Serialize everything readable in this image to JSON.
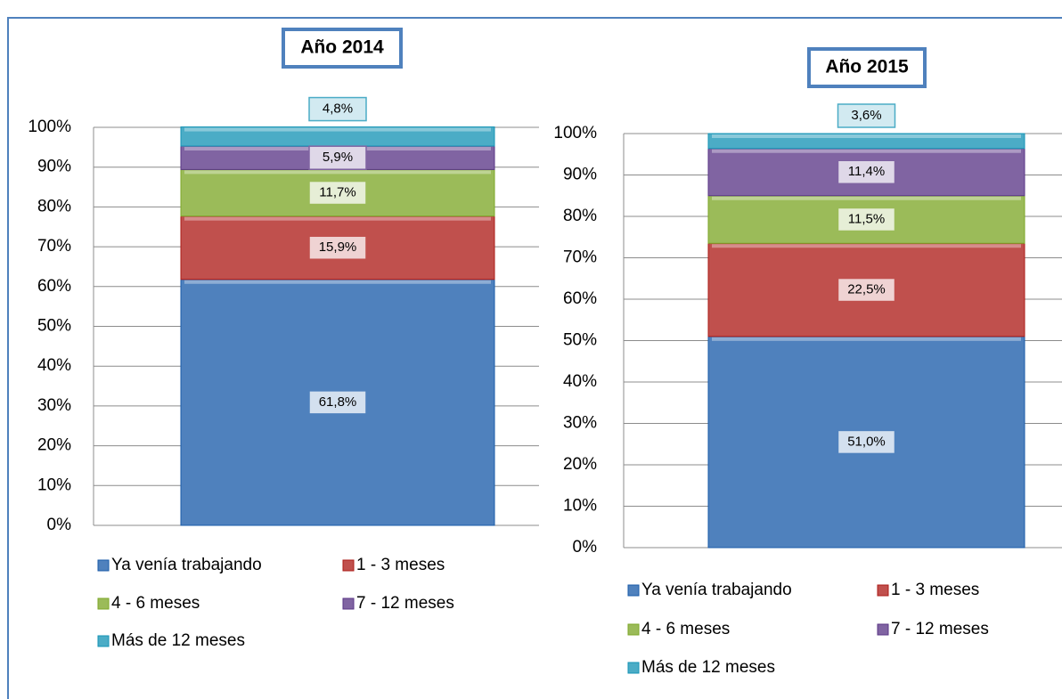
{
  "chart_data": [
    {
      "type": "stacked-bar",
      "title": "Año 2014",
      "categories": [
        null
      ],
      "ylim": [
        0,
        100
      ],
      "yticks": [
        {
          "value": 0,
          "label": "0%"
        },
        {
          "value": 10,
          "label": "10%"
        },
        {
          "value": 20,
          "label": "20%"
        },
        {
          "value": 30,
          "label": "30%"
        },
        {
          "value": 40,
          "label": "40%"
        },
        {
          "value": 50,
          "label": "50%"
        },
        {
          "value": 60,
          "label": "60%"
        },
        {
          "value": 70,
          "label": "70%"
        },
        {
          "value": 80,
          "label": "80%"
        },
        {
          "value": 90,
          "label": "90%"
        },
        {
          "value": 100,
          "label": "100%"
        }
      ],
      "grid": true,
      "legend": "bottom",
      "series": [
        {
          "name": "Ya venía trabajando",
          "color": "#4f81bd",
          "values": [
            61.8
          ],
          "value_labels": [
            "61,8%"
          ]
        },
        {
          "name": "1 - 3 meses",
          "color": "#c0504d",
          "values": [
            15.9
          ],
          "value_labels": [
            "15,9%"
          ]
        },
        {
          "name": "4 - 6 meses",
          "color": "#9bbb59",
          "values": [
            11.7
          ],
          "value_labels": [
            "11,7%"
          ]
        },
        {
          "name": "7 - 12 meses",
          "color": "#8064a2",
          "values": [
            5.9
          ],
          "value_labels": [
            "5,9%"
          ]
        },
        {
          "name": "Más  de 12 meses",
          "color": "#4bacc6",
          "values": [
            4.8
          ],
          "value_labels": [
            "4,8%"
          ]
        }
      ]
    },
    {
      "type": "stacked-bar",
      "title": "Año 2015",
      "categories": [
        null
      ],
      "ylim": [
        0,
        100
      ],
      "yticks": [
        {
          "value": 0,
          "label": "0%"
        },
        {
          "value": 10,
          "label": "10%"
        },
        {
          "value": 20,
          "label": "20%"
        },
        {
          "value": 30,
          "label": "30%"
        },
        {
          "value": 40,
          "label": "40%"
        },
        {
          "value": 50,
          "label": "50%"
        },
        {
          "value": 60,
          "label": "60%"
        },
        {
          "value": 70,
          "label": "70%"
        },
        {
          "value": 80,
          "label": "80%"
        },
        {
          "value": 90,
          "label": "90%"
        },
        {
          "value": 100,
          "label": "100%"
        }
      ],
      "grid": true,
      "legend": "bottom",
      "series": [
        {
          "name": "Ya venía trabajando",
          "color": "#4f81bd",
          "values": [
            51.0
          ],
          "value_labels": [
            "51,0%"
          ]
        },
        {
          "name": "1 - 3 meses",
          "color": "#c0504d",
          "values": [
            22.5
          ],
          "value_labels": [
            "22,5%"
          ]
        },
        {
          "name": "4 - 6 meses",
          "color": "#9bbb59",
          "values": [
            11.5
          ],
          "value_labels": [
            "11,5%"
          ]
        },
        {
          "name": "7 - 12 meses",
          "color": "#8064a2",
          "values": [
            11.4
          ],
          "value_labels": [
            "11,4%"
          ]
        },
        {
          "name": "Más  de 12 meses",
          "color": "#4bacc6",
          "values": [
            3.6
          ],
          "value_labels": [
            "3,6%"
          ]
        }
      ]
    }
  ]
}
